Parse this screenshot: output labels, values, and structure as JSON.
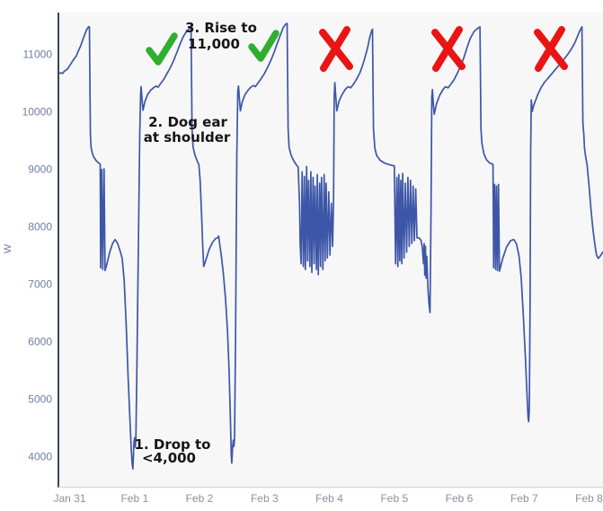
{
  "figure": {
    "kind": "annotated time-series line chart of power (W) with daily wash-cycle shapes",
    "pass_marks_count": 2,
    "fail_marks_count": 3
  },
  "y_axis": {
    "title": "W",
    "tick_values": [
      11000,
      10000,
      9000,
      8000,
      7000,
      6000,
      5000,
      4000
    ]
  },
  "x_axis": {
    "tick_labels": [
      "Jan 31",
      "Feb 1",
      "Feb 2",
      "Feb 3",
      "Feb 4",
      "Feb 5",
      "Feb 6",
      "Feb 7",
      "Feb 8"
    ]
  },
  "annotations": {
    "rise": {
      "line1": "3. Rise to",
      "line2": "11,000"
    },
    "dogear": {
      "line1": "2. Dog ear",
      "line2": "at shoulder"
    },
    "drop": {
      "line1": "1. Drop to",
      "line2": "<4,000"
    }
  },
  "colors": {
    "page_bg": "#ffffff",
    "plot_bg": "#f7f7f7",
    "axis_line": "#39455f",
    "bottom_border": "#d9d9d9",
    "y_label": "#6f7da1",
    "x_label": "#8b919d",
    "annotation_text": "#151515",
    "series_blue": "#3d56a8",
    "check_green": "#2fae2f",
    "x_red": "#ea1414"
  },
  "chart_data": {
    "type": "line",
    "title": "",
    "xlabel": "",
    "ylabel": "W",
    "grid": false,
    "legend": "none",
    "x_unit": "days after Jan 31",
    "x_tick_days": [
      0,
      1,
      2,
      3,
      4,
      5,
      6,
      7,
      8
    ],
    "xlim": [
      -0.18,
      8.21
    ],
    "ylim": [
      3470,
      11720
    ],
    "series": [
      {
        "name": "Power (W)",
        "color": "#3d56a8",
        "points": [
          [
            -0.18,
            10650
          ],
          [
            -0.14,
            10670
          ],
          [
            -0.11,
            10660
          ],
          [
            -0.08,
            10700
          ],
          [
            -0.05,
            10720
          ],
          [
            -0.02,
            10760
          ],
          [
            0.02,
            10830
          ],
          [
            0.06,
            10900
          ],
          [
            0.1,
            10960
          ],
          [
            0.13,
            11040
          ],
          [
            0.17,
            11140
          ],
          [
            0.2,
            11240
          ],
          [
            0.23,
            11330
          ],
          [
            0.26,
            11420
          ],
          [
            0.29,
            11470
          ],
          [
            0.305,
            11470
          ],
          [
            0.32,
            9600
          ],
          [
            0.33,
            9380
          ],
          [
            0.35,
            9270
          ],
          [
            0.37,
            9210
          ],
          [
            0.41,
            9140
          ],
          [
            0.45,
            9100
          ],
          [
            0.47,
            9080
          ],
          [
            0.478,
            7280
          ],
          [
            0.495,
            8990
          ],
          [
            0.51,
            7250
          ],
          [
            0.53,
            9000
          ],
          [
            0.545,
            7230
          ],
          [
            0.57,
            7330
          ],
          [
            0.62,
            7560
          ],
          [
            0.66,
            7700
          ],
          [
            0.7,
            7770
          ],
          [
            0.74,
            7700
          ],
          [
            0.78,
            7560
          ],
          [
            0.81,
            7440
          ],
          [
            0.84,
            7050
          ],
          [
            0.87,
            6300
          ],
          [
            0.9,
            5400
          ],
          [
            0.93,
            4600
          ],
          [
            0.95,
            4100
          ],
          [
            0.965,
            3850
          ],
          [
            0.975,
            3780
          ],
          [
            0.99,
            4230
          ],
          [
            1.0,
            4320
          ],
          [
            1.01,
            4160
          ],
          [
            1.02,
            4300
          ],
          [
            1.035,
            5500
          ],
          [
            1.06,
            7800
          ],
          [
            1.08,
            9600
          ],
          [
            1.093,
            10300
          ],
          [
            1.1,
            10430
          ],
          [
            1.115,
            10200
          ],
          [
            1.13,
            10020
          ],
          [
            1.16,
            10170
          ],
          [
            1.2,
            10290
          ],
          [
            1.25,
            10370
          ],
          [
            1.29,
            10410
          ],
          [
            1.33,
            10440
          ],
          [
            1.36,
            10420
          ],
          [
            1.4,
            10480
          ],
          [
            1.45,
            10560
          ],
          [
            1.5,
            10660
          ],
          [
            1.55,
            10760
          ],
          [
            1.6,
            10880
          ],
          [
            1.65,
            11020
          ],
          [
            1.7,
            11170
          ],
          [
            1.75,
            11300
          ],
          [
            1.8,
            11390
          ],
          [
            1.84,
            11440
          ],
          [
            1.87,
            11460
          ],
          [
            1.885,
            9700
          ],
          [
            1.9,
            9380
          ],
          [
            1.93,
            9240
          ],
          [
            1.96,
            9150
          ],
          [
            1.99,
            9070
          ],
          [
            2.01,
            8800
          ],
          [
            2.03,
            8250
          ],
          [
            2.05,
            7650
          ],
          [
            2.065,
            7300
          ],
          [
            2.1,
            7420
          ],
          [
            2.15,
            7600
          ],
          [
            2.2,
            7720
          ],
          [
            2.25,
            7790
          ],
          [
            2.28,
            7800
          ],
          [
            2.295,
            7830
          ],
          [
            2.31,
            7700
          ],
          [
            2.34,
            7450
          ],
          [
            2.37,
            7150
          ],
          [
            2.4,
            6750
          ],
          [
            2.43,
            6200
          ],
          [
            2.455,
            5500
          ],
          [
            2.475,
            4700
          ],
          [
            2.49,
            4000
          ],
          [
            2.497,
            3880
          ],
          [
            2.51,
            4150
          ],
          [
            2.52,
            4280
          ],
          [
            2.53,
            4170
          ],
          [
            2.54,
            4310
          ],
          [
            2.555,
            6000
          ],
          [
            2.575,
            9200
          ],
          [
            2.59,
            10350
          ],
          [
            2.6,
            10440
          ],
          [
            2.615,
            10220
          ],
          [
            2.63,
            10010
          ],
          [
            2.66,
            10170
          ],
          [
            2.7,
            10290
          ],
          [
            2.75,
            10370
          ],
          [
            2.79,
            10420
          ],
          [
            2.83,
            10450
          ],
          [
            2.86,
            10430
          ],
          [
            2.9,
            10490
          ],
          [
            2.95,
            10570
          ],
          [
            3.0,
            10660
          ],
          [
            3.05,
            10770
          ],
          [
            3.1,
            10890
          ],
          [
            3.15,
            11030
          ],
          [
            3.2,
            11190
          ],
          [
            3.25,
            11340
          ],
          [
            3.29,
            11460
          ],
          [
            3.33,
            11520
          ],
          [
            3.35,
            11530
          ],
          [
            3.365,
            9700
          ],
          [
            3.38,
            9370
          ],
          [
            3.41,
            9240
          ],
          [
            3.45,
            9140
          ],
          [
            3.49,
            9070
          ],
          [
            3.52,
            9030
          ],
          [
            3.54,
            8400
          ],
          [
            3.55,
            7700
          ],
          [
            3.565,
            7350
          ],
          [
            3.58,
            8950
          ],
          [
            3.6,
            7300
          ],
          [
            3.615,
            8870
          ],
          [
            3.63,
            7250
          ],
          [
            3.65,
            9040
          ],
          [
            3.665,
            7400
          ],
          [
            3.68,
            8800
          ],
          [
            3.7,
            7300
          ],
          [
            3.715,
            8950
          ],
          [
            3.73,
            7200
          ],
          [
            3.75,
            8850
          ],
          [
            3.765,
            7350
          ],
          [
            3.78,
            8700
          ],
          [
            3.8,
            7250
          ],
          [
            3.815,
            8900
          ],
          [
            3.83,
            7160
          ],
          [
            3.85,
            8750
          ],
          [
            3.865,
            7300
          ],
          [
            3.88,
            8850
          ],
          [
            3.9,
            7250
          ],
          [
            3.92,
            8900
          ],
          [
            3.935,
            7400
          ],
          [
            3.95,
            8750
          ],
          [
            3.97,
            7450
          ],
          [
            3.99,
            8600
          ],
          [
            4.01,
            7500
          ],
          [
            4.03,
            8400
          ],
          [
            4.05,
            7650
          ],
          [
            4.065,
            8500
          ],
          [
            4.075,
            10250
          ],
          [
            4.085,
            10500
          ],
          [
            4.1,
            10250
          ],
          [
            4.115,
            10010
          ],
          [
            4.15,
            10180
          ],
          [
            4.2,
            10300
          ],
          [
            4.25,
            10390
          ],
          [
            4.29,
            10430
          ],
          [
            4.33,
            10410
          ],
          [
            4.37,
            10470
          ],
          [
            4.42,
            10560
          ],
          [
            4.47,
            10670
          ],
          [
            4.51,
            10790
          ],
          [
            4.55,
            10940
          ],
          [
            4.59,
            11110
          ],
          [
            4.62,
            11280
          ],
          [
            4.65,
            11400
          ],
          [
            4.665,
            11430
          ],
          [
            4.68,
            9700
          ],
          [
            4.7,
            9360
          ],
          [
            4.73,
            9230
          ],
          [
            4.78,
            9150
          ],
          [
            4.85,
            9100
          ],
          [
            4.93,
            9070
          ],
          [
            5.0,
            9050
          ],
          [
            5.02,
            7350
          ],
          [
            5.04,
            8850
          ],
          [
            5.055,
            7300
          ],
          [
            5.07,
            8900
          ],
          [
            5.085,
            7400
          ],
          [
            5.1,
            8800
          ],
          [
            5.115,
            7350
          ],
          [
            5.13,
            8920
          ],
          [
            5.15,
            7450
          ],
          [
            5.17,
            8750
          ],
          [
            5.19,
            7550
          ],
          [
            5.21,
            8850
          ],
          [
            5.23,
            7650
          ],
          [
            5.25,
            8800
          ],
          [
            5.27,
            7700
          ],
          [
            5.29,
            8700
          ],
          [
            5.31,
            7750
          ],
          [
            5.33,
            8650
          ],
          [
            5.35,
            7800
          ],
          [
            5.38,
            7800
          ],
          [
            5.41,
            7760
          ],
          [
            5.43,
            7650
          ],
          [
            5.45,
            7350
          ],
          [
            5.46,
            7700
          ],
          [
            5.47,
            7150
          ],
          [
            5.48,
            7650
          ],
          [
            5.49,
            7100
          ],
          [
            5.5,
            7480
          ],
          [
            5.52,
            6900
          ],
          [
            5.535,
            6650
          ],
          [
            5.55,
            6500
          ],
          [
            5.565,
            8200
          ],
          [
            5.578,
            10250
          ],
          [
            5.588,
            10380
          ],
          [
            5.6,
            10150
          ],
          [
            5.615,
            9950
          ],
          [
            5.65,
            10130
          ],
          [
            5.7,
            10280
          ],
          [
            5.75,
            10380
          ],
          [
            5.79,
            10430
          ],
          [
            5.83,
            10410
          ],
          [
            5.87,
            10470
          ],
          [
            5.92,
            10550
          ],
          [
            5.97,
            10660
          ],
          [
            6.02,
            10780
          ],
          [
            6.07,
            10930
          ],
          [
            6.12,
            11110
          ],
          [
            6.17,
            11270
          ],
          [
            6.23,
            11390
          ],
          [
            6.29,
            11450
          ],
          [
            6.32,
            11470
          ],
          [
            6.335,
            9700
          ],
          [
            6.35,
            9440
          ],
          [
            6.38,
            9260
          ],
          [
            6.42,
            9160
          ],
          [
            6.47,
            9100
          ],
          [
            6.52,
            9080
          ],
          [
            6.53,
            7280
          ],
          [
            6.545,
            8730
          ],
          [
            6.56,
            7250
          ],
          [
            6.575,
            8700
          ],
          [
            6.59,
            7230
          ],
          [
            6.605,
            8730
          ],
          [
            6.62,
            7220
          ],
          [
            6.67,
            7440
          ],
          [
            6.73,
            7640
          ],
          [
            6.79,
            7750
          ],
          [
            6.84,
            7770
          ],
          [
            6.88,
            7700
          ],
          [
            6.92,
            7490
          ],
          [
            6.955,
            7100
          ],
          [
            6.99,
            6400
          ],
          [
            7.02,
            5700
          ],
          [
            7.045,
            5050
          ],
          [
            7.06,
            4680
          ],
          [
            7.07,
            4600
          ],
          [
            7.08,
            4820
          ],
          [
            7.09,
            6500
          ],
          [
            7.1,
            9300
          ],
          [
            7.11,
            10200
          ],
          [
            7.125,
            10000
          ],
          [
            7.14,
            10080
          ],
          [
            7.17,
            10170
          ],
          [
            7.21,
            10290
          ],
          [
            7.26,
            10410
          ],
          [
            7.31,
            10500
          ],
          [
            7.37,
            10580
          ],
          [
            7.43,
            10660
          ],
          [
            7.49,
            10740
          ],
          [
            7.55,
            10820
          ],
          [
            7.61,
            10900
          ],
          [
            7.67,
            10990
          ],
          [
            7.73,
            11090
          ],
          [
            7.78,
            11190
          ],
          [
            7.82,
            11300
          ],
          [
            7.86,
            11410
          ],
          [
            7.89,
            11470
          ],
          [
            7.905,
            9800
          ],
          [
            7.92,
            9590
          ],
          [
            7.93,
            9360
          ],
          [
            7.945,
            9230
          ],
          [
            7.97,
            9070
          ],
          [
            8.0,
            8700
          ],
          [
            8.03,
            8280
          ],
          [
            8.06,
            7950
          ],
          [
            8.09,
            7680
          ],
          [
            8.115,
            7500
          ],
          [
            8.14,
            7440
          ],
          [
            8.17,
            7480
          ],
          [
            8.21,
            7550
          ]
        ]
      }
    ]
  }
}
